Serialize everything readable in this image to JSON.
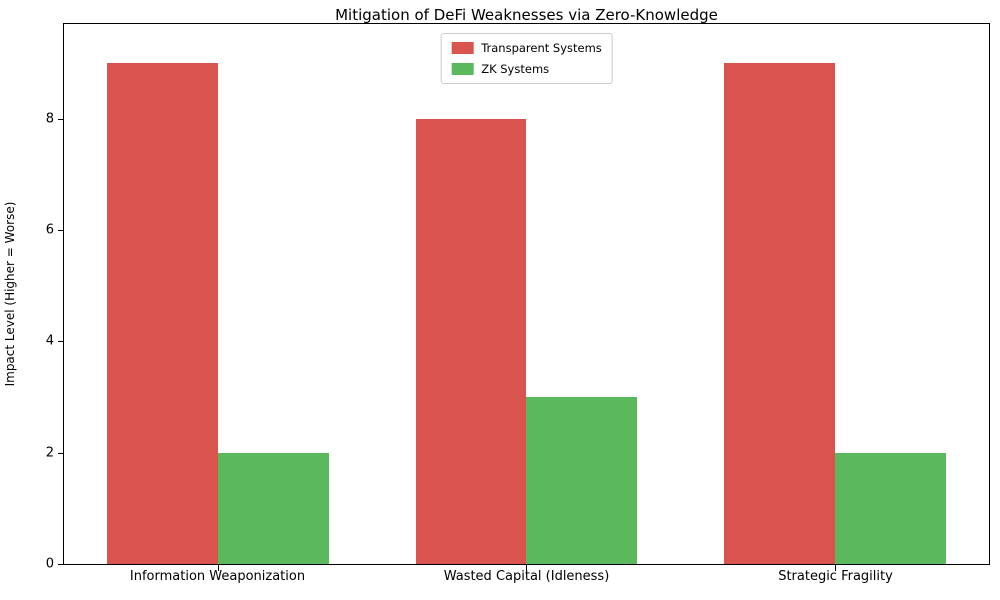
{
  "chart_data": {
    "type": "bar",
    "title": "Mitigation of DeFi Weaknesses via Zero-Knowledge",
    "xlabel": "",
    "ylabel": "Impact Level (Higher = Worse)",
    "categories": [
      "Information Weaponization",
      "Wasted Capital (Idleness)",
      "Strategic Fragility"
    ],
    "series": [
      {
        "name": "Transparent Systems",
        "color": "#d9534f",
        "values": [
          9,
          8,
          9
        ]
      },
      {
        "name": "ZK Systems",
        "color": "#5cb85c",
        "values": [
          2,
          3,
          2
        ]
      }
    ],
    "ylim": [
      0,
      9.7
    ],
    "yticks": [
      0,
      2,
      4,
      6,
      8
    ],
    "grid": false,
    "legend_position": "upper center",
    "legend_frame": true
  }
}
